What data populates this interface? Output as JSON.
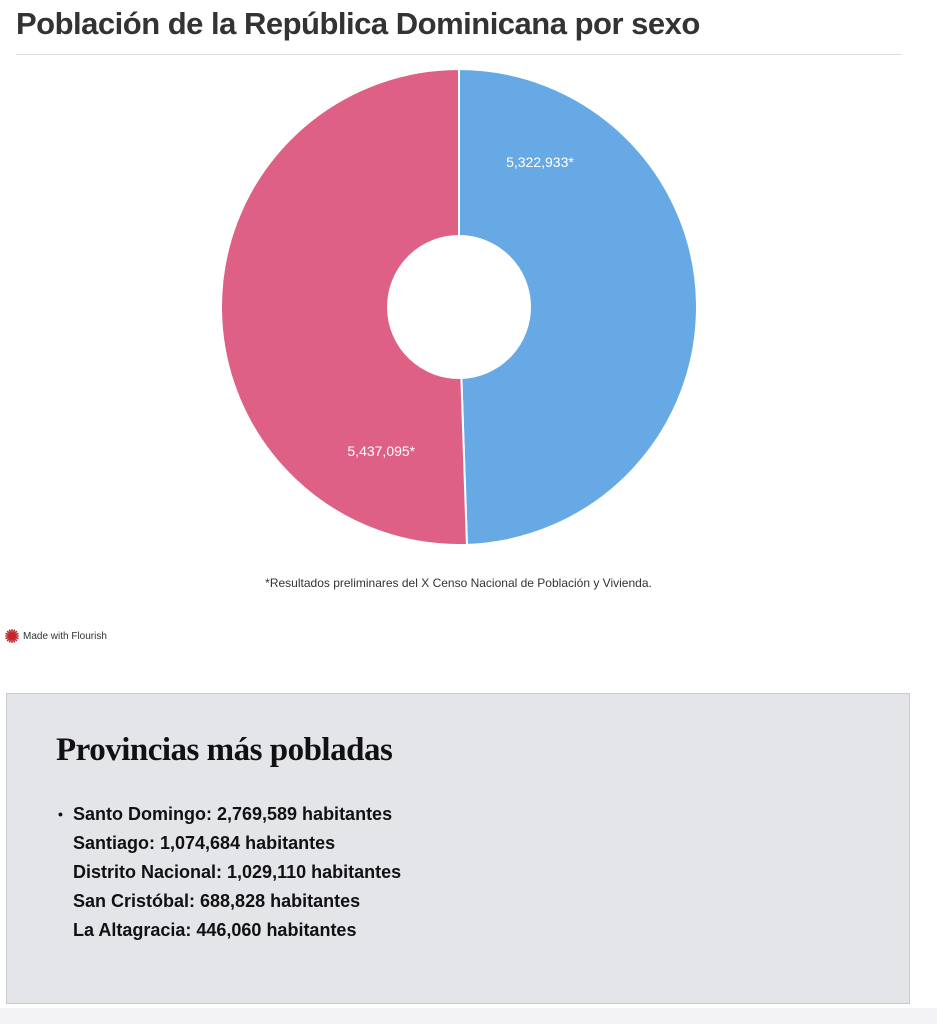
{
  "chart_data": {
    "type": "pie",
    "title": "Población de la República Dominicana por sexo",
    "donut": true,
    "slices": [
      {
        "value": 5322933,
        "label": "5,322,933*",
        "color": "#67a9e5"
      },
      {
        "value": 5437095,
        "label": "5,437,095*",
        "color": "#de6185"
      }
    ],
    "footnote": "*Resultados preliminares del X Censo Nacional de Población y Vivienda.",
    "legend": "none"
  },
  "attribution": {
    "text": "Made with Flourish",
    "icon": "flourish-logo-icon",
    "color": "#c0262d"
  },
  "provinces": {
    "title": "Provincias más pobladas",
    "bullet": "•",
    "items": [
      "Santo Domingo: 2,769,589 habitantes",
      "Santiago: 1,074,684 habitantes",
      "Distrito Nacional: 1,029,110 habitantes",
      "San Cristóbal: 688,828 habitantes",
      "La Altagracia: 446,060 habitantes"
    ]
  }
}
